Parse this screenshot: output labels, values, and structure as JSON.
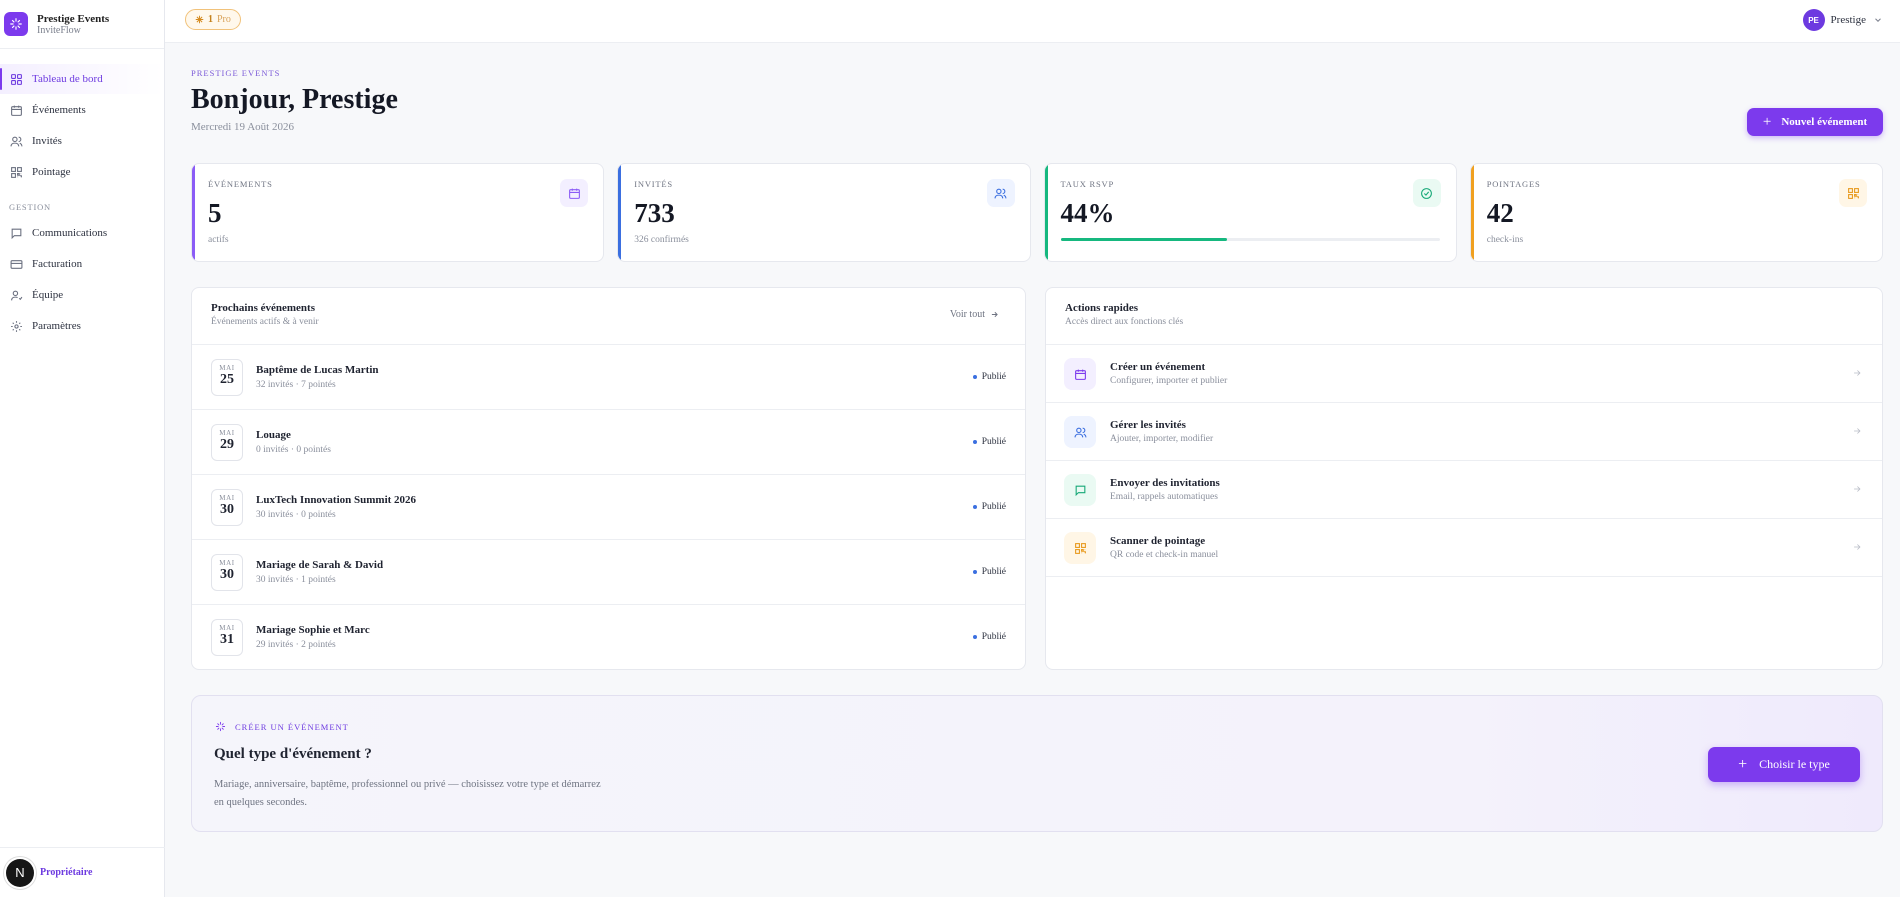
{
  "brand": {
    "name": "Prestige Events",
    "app": "InviteFlow"
  },
  "sidebar": {
    "items": [
      {
        "label": "Tableau de bord",
        "icon": "grid-icon",
        "active": true
      },
      {
        "label": "Événements",
        "icon": "calendar-icon"
      },
      {
        "label": "Invités",
        "icon": "users-icon"
      },
      {
        "label": "Pointage",
        "icon": "qr-icon"
      }
    ],
    "section_label": "GESTION",
    "section_items": [
      {
        "label": "Communications",
        "icon": "message-icon"
      },
      {
        "label": "Facturation",
        "icon": "card-icon"
      },
      {
        "label": "Équipe",
        "icon": "team-icon"
      },
      {
        "label": "Paramètres",
        "icon": "gear-icon"
      }
    ],
    "footer": {
      "avatar_letter": "N",
      "role": "Propriétaire"
    }
  },
  "topbar": {
    "badge_count": "1",
    "badge_plan": "Pro",
    "profile_initials": "PE",
    "profile_name": "Prestige"
  },
  "header": {
    "eyebrow": "PRESTIGE EVENTS",
    "title": "Bonjour, Prestige",
    "date": "Mercredi 19 Août 2026",
    "new_event_label": "Nouvel événement"
  },
  "stats": [
    {
      "label": "ÉVÉNEMENTS",
      "value": "5",
      "sub": "actifs",
      "color": "#8b5cf6",
      "icon": "calendar-icon"
    },
    {
      "label": "INVITÉS",
      "value": "733",
      "sub": "326 confirmés",
      "color": "#3b6fe0",
      "icon": "users-icon"
    },
    {
      "label": "TAUX RSVP",
      "value": "44%",
      "progress": 0.44,
      "color": "#16b87f",
      "icon": "check-circle-icon"
    },
    {
      "label": "POINTAGES",
      "value": "42",
      "sub": "check-ins",
      "color": "#f0a020",
      "icon": "qr-icon"
    }
  ],
  "events_panel": {
    "title": "Prochains événements",
    "subtitle": "Événements actifs & à venir",
    "see_all": "Voir tout",
    "rows": [
      {
        "month": "MAI",
        "day": "25",
        "name": "Baptême de Lucas Martin",
        "meta": "32 invités · 7 pointés",
        "status": "Publié"
      },
      {
        "month": "MAI",
        "day": "29",
        "name": "Louage",
        "meta": "0 invités · 0 pointés",
        "status": "Publié"
      },
      {
        "month": "MAI",
        "day": "30",
        "name": "LuxTech Innovation Summit 2026",
        "meta": "30 invités · 0 pointés",
        "status": "Publié"
      },
      {
        "month": "MAI",
        "day": "30",
        "name": "Mariage de Sarah & David",
        "meta": "30 invités · 1 pointés",
        "status": "Publié"
      },
      {
        "month": "MAI",
        "day": "31",
        "name": "Mariage Sophie et Marc",
        "meta": "29 invités · 2 pointés",
        "status": "Publié"
      }
    ]
  },
  "actions_panel": {
    "title": "Actions rapides",
    "subtitle": "Accès direct aux fonctions clés",
    "rows": [
      {
        "title": "Créer un événement",
        "sub": "Configurer, importer et publier",
        "icon": "calendar-icon",
        "color": "#7c3aed",
        "bg": "#f3efff"
      },
      {
        "title": "Gérer les invités",
        "sub": "Ajouter, importer, modifier",
        "icon": "users-icon",
        "color": "#3b6fe0",
        "bg": "#eef3ff"
      },
      {
        "title": "Envoyer des invitations",
        "sub": "Email, rappels automatiques",
        "icon": "message-icon",
        "color": "#16a877",
        "bg": "#eafaf3"
      },
      {
        "title": "Scanner de pointage",
        "sub": "QR code et check-in manuel",
        "icon": "qr-icon",
        "color": "#e8991c",
        "bg": "#fff6e6"
      }
    ]
  },
  "cta": {
    "eyebrow": "CRÉER UN ÉVÉNEMENT",
    "title": "Quel type d'événement ?",
    "description": "Mariage, anniversaire, baptême, professionnel ou privé — choisissez votre type et démarrez en quelques secondes.",
    "button": "Choisir le type"
  }
}
